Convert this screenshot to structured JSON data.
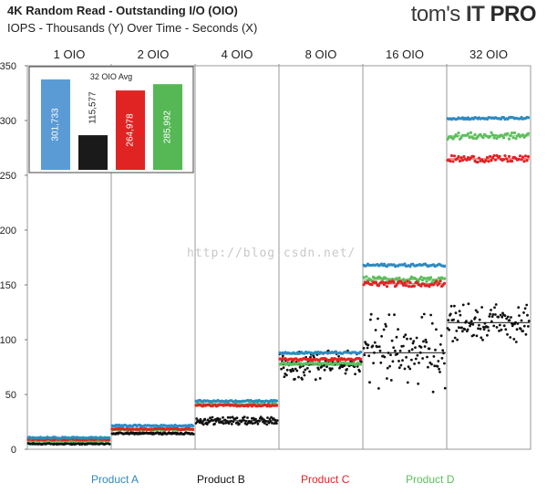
{
  "header": {
    "title": "4K Random Read - Outstanding I/O (OIO)",
    "subtitle": "IOPS - Thousands (Y) Over Time - Seconds (X)",
    "logo_part1": "tom's",
    "logo_part2": "IT",
    "logo_part3": "PRO",
    "watermark": "http://blog.csdn.net/"
  },
  "chart_data": [
    {
      "type": "scatter",
      "title": "4K Random Read - Outstanding I/O (OIO)",
      "subtitle": "IOPS - Thousands (Y) Over Time - Seconds (X)",
      "xlabel": "",
      "ylabel": "",
      "ylim": [
        0,
        350
      ],
      "yticks": [
        0,
        50,
        100,
        150,
        200,
        250,
        300,
        350
      ],
      "grid": "vertical separators between OIO phases",
      "legend_position": "bottom",
      "phases": [
        "1 OIO",
        "2 OIO",
        "4 OIO",
        "8 OIO",
        "16 OIO",
        "32 OIO"
      ],
      "series": [
        {
          "name": "Product A",
          "color": "#2f8bc0",
          "phase_means": [
            10.5,
            21.5,
            44,
            88,
            168,
            302
          ]
        },
        {
          "name": "Product B",
          "color": "#111111",
          "phase_means": [
            5,
            14.5,
            26,
            77,
            88,
            115.5
          ]
        },
        {
          "name": "Product C",
          "color": "#e02424",
          "phase_means": [
            9,
            18.5,
            40,
            82,
            151,
            265
          ]
        },
        {
          "name": "Product D",
          "color": "#5cbf5c",
          "phase_means": [
            7.5,
            18,
            41,
            78,
            155,
            286
          ]
        }
      ]
    },
    {
      "type": "bar",
      "title": "32 OIO Avg",
      "categories": [
        "Product A",
        "Product B",
        "Product C",
        "Product D"
      ],
      "values": [
        301733,
        115577,
        264978,
        285992
      ],
      "labels": [
        "301,733",
        "115,577",
        "264,978",
        "285,992"
      ],
      "colors": [
        "#5b9bd5",
        "#1a1a1a",
        "#e02424",
        "#55b855"
      ]
    }
  ],
  "legend": [
    {
      "name": "Product A",
      "color": "#2f8bc0"
    },
    {
      "name": "Product B",
      "color": "#111111"
    },
    {
      "name": "Product C",
      "color": "#e02424"
    },
    {
      "name": "Product D",
      "color": "#5cbf5c"
    }
  ]
}
